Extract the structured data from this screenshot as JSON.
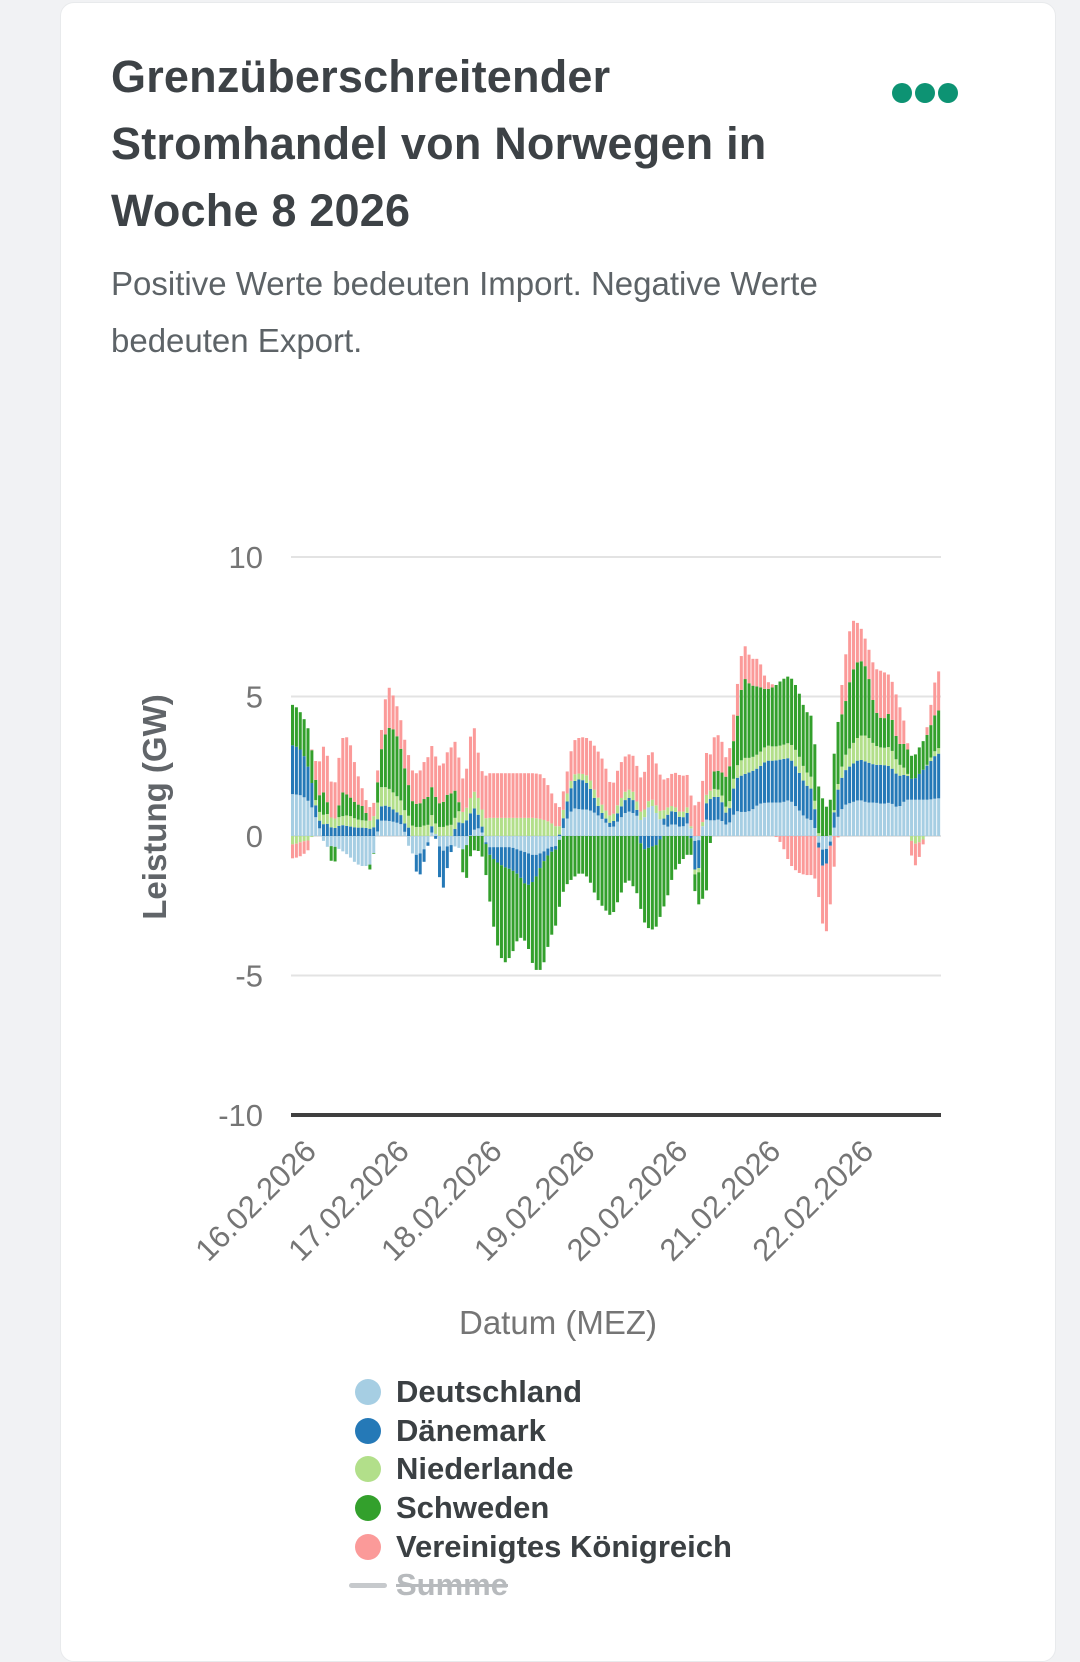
{
  "page": {
    "background": "#f1f2f4"
  },
  "card": {
    "title": "Grenzüberschreitender Stromhandel von Norwegen in Woche 8 2026",
    "subtitle": "Positive Werte bedeuten Import. Negative Werte bedeuten Export.",
    "menu_icon": "ellipsis-horizontal-icon",
    "menu_color": "#0d9373"
  },
  "chart_data": {
    "type": "bar",
    "stacked": true,
    "title": "Grenzüberschreitender Stromhandel von Norwegen in Woche 8 2026",
    "xlabel": "Datum (MEZ)",
    "ylabel": "Leistung (GW)",
    "ylim": [
      -10,
      10
    ],
    "yticks": [
      10,
      5,
      0,
      -5,
      -10
    ],
    "x_tick_labels": [
      "16.02.2026",
      "17.02.2026",
      "18.02.2026",
      "19.02.2026",
      "20.02.2026",
      "21.02.2026",
      "22.02.2026"
    ],
    "x_range_days": 7,
    "hours_per_value": 2,
    "grid": true,
    "legend_position": "bottom",
    "axis_color": "#3f3f3f",
    "grid_color": "#e3e3e3",
    "tick_label_color": "#757575",
    "series": [
      {
        "name": "Deutschland",
        "color": "#a6cee3",
        "values": [
          1.5,
          1.45,
          1.2,
          0.5,
          -0.4,
          -0.35,
          -0.5,
          -0.7,
          -1.0,
          -1.1,
          -1.0,
          0.55,
          0.55,
          0.5,
          0.4,
          -0.6,
          -0.7,
          -0.4,
          0.3,
          -0.6,
          -0.3,
          -0.4,
          -0.5,
          0.2,
          0.3,
          -0.4,
          -0.4,
          -0.4,
          -0.4,
          -0.5,
          -0.6,
          -0.7,
          -0.6,
          -0.4,
          -0.35,
          0.5,
          1.0,
          0.95,
          0.95,
          0.8,
          0.55,
          0.25,
          0.6,
          0.9,
          0.8,
          0.5,
          1.2,
          0.7,
          0.3,
          0.45,
          0.3,
          0.5,
          -0.4,
          0.6,
          0.55,
          0.6,
          0.35,
          0.9,
          0.85,
          0.9,
          1.15,
          1.2,
          1.2,
          1.2,
          1.3,
          1.0,
          0.65,
          0.55,
          -0.5,
          -0.45,
          0.55,
          1.1,
          1.2,
          1.3,
          1.2,
          1.2,
          1.15,
          1.2,
          1.0,
          1.3,
          1.3,
          1.3,
          1.3,
          1.35
        ]
      },
      {
        "name": "Dänemark",
        "color": "#2579b7",
        "values": [
          1.75,
          1.6,
          1.1,
          0.2,
          0.5,
          0.25,
          0.4,
          0.35,
          0.3,
          0.3,
          0.25,
          0.5,
          0.55,
          0.4,
          0.3,
          0.3,
          -0.9,
          -0.3,
          0.4,
          -1.6,
          -0.5,
          0.5,
          0.45,
          0.9,
          0.35,
          -0.2,
          -0.5,
          -0.7,
          -0.8,
          -0.9,
          -1.2,
          -0.9,
          -0.4,
          -0.2,
          -0.1,
          0.5,
          0.95,
          1.1,
          0.9,
          0.4,
          0.15,
          0.15,
          0.35,
          0.5,
          0.45,
          -0.5,
          -0.4,
          -0.3,
          0.4,
          0.5,
          0.3,
          0.4,
          -1.5,
          0.5,
          0.85,
          0.8,
          0.3,
          1.15,
          1.35,
          1.4,
          1.3,
          1.5,
          1.5,
          1.55,
          1.5,
          1.4,
          1.2,
          1.1,
          -0.6,
          -0.5,
          0.9,
          1.2,
          1.35,
          1.45,
          1.45,
          1.35,
          1.4,
          1.3,
          1.15,
          0.9,
          0.7,
          1.0,
          1.3,
          1.6
        ]
      },
      {
        "name": "Niederlande",
        "color": "#b2df8a",
        "values": [
          -0.3,
          -0.2,
          -0.15,
          0.3,
          0.35,
          0.35,
          0.3,
          0.4,
          0.3,
          0.25,
          0.3,
          0.7,
          0.65,
          0.6,
          0.5,
          0.4,
          0.3,
          0.4,
          0.4,
          0.3,
          0.4,
          0.4,
          0.4,
          0.6,
          0.6,
          0.65,
          0.65,
          0.65,
          0.65,
          0.65,
          0.65,
          0.65,
          0.6,
          0.5,
          0.3,
          0.3,
          0.25,
          0.2,
          0.3,
          0.3,
          0.3,
          0.25,
          0.3,
          0.3,
          0.3,
          0.3,
          0.2,
          0.3,
          0.3,
          0.15,
          0.2,
          0.2,
          -0.3,
          0.3,
          0.3,
          0.25,
          0.2,
          0.4,
          0.6,
          0.5,
          0.5,
          0.55,
          0.5,
          0.5,
          0.55,
          0.6,
          0.5,
          0.4,
          0.0,
          0.0,
          0.1,
          0.5,
          0.7,
          0.85,
          0.95,
          0.7,
          0.6,
          0.7,
          0.45,
          0.2,
          -0.3,
          -0.2,
          0.1,
          0.2
        ]
      },
      {
        "name": "Schweden",
        "color": "#33a02c",
        "values": [
          1.45,
          1.3,
          1.4,
          0.5,
          0.9,
          -1.0,
          0.9,
          0.7,
          0.55,
          0.5,
          -0.4,
          1.1,
          2.15,
          2.3,
          1.7,
          0.9,
          0.8,
          1.0,
          1.0,
          0.8,
          1.2,
          0.9,
          -1.4,
          -0.5,
          -0.55,
          -1.3,
          -2.8,
          -3.5,
          -3.1,
          -2.2,
          -2.0,
          -3.2,
          -3.8,
          -3.1,
          -2.6,
          -1.8,
          -1.5,
          -1.3,
          -1.5,
          -2.2,
          -2.6,
          -2.9,
          -2.2,
          -1.5,
          -1.9,
          -2.5,
          -3.0,
          -2.9,
          -2.4,
          -1.3,
          -0.9,
          -0.6,
          -0.6,
          -2.8,
          0.6,
          0.7,
          1.2,
          1.4,
          2.9,
          2.6,
          2.4,
          2.0,
          2.15,
          2.35,
          2.4,
          2.3,
          2.15,
          2.2,
          1.5,
          0.9,
          2.4,
          1.7,
          2.6,
          2.75,
          2.4,
          1.25,
          1.0,
          1.25,
          0.7,
          0.9,
          0.8,
          1.0,
          1.1,
          1.35
        ]
      },
      {
        "name": "Vereinigtes Königreich",
        "color": "#fb9a99",
        "values": [
          -0.5,
          -0.5,
          -0.3,
          1.0,
          1.85,
          1.1,
          1.9,
          2.1,
          1.2,
          0.45,
          0.5,
          0.4,
          1.55,
          1.1,
          1.0,
          1.1,
          1.1,
          1.4,
          1.5,
          1.3,
          1.6,
          1.8,
          1.0,
          2.6,
          1.3,
          1.6,
          1.6,
          1.6,
          1.6,
          1.6,
          1.6,
          1.6,
          1.6,
          1.2,
          0.7,
          0.65,
          1.2,
          1.3,
          1.35,
          1.65,
          1.65,
          1.05,
          1.3,
          1.25,
          1.3,
          1.2,
          1.8,
          1.4,
          1.0,
          1.2,
          1.35,
          1.1,
          1.1,
          1.6,
          1.2,
          1.3,
          0.5,
          1.1,
          1.25,
          0.95,
          1.0,
          0.3,
          0.05,
          -0.3,
          -1.0,
          -1.3,
          -1.4,
          -1.4,
          -1.9,
          -2.6,
          -0.6,
          1.6,
          1.9,
          1.25,
          0.9,
          1.5,
          1.75,
          1.3,
          1.55,
          0.6,
          -0.9,
          -0.4,
          0.5,
          1.4
        ]
      },
      {
        "name": "Summe",
        "color": "#c6c9cc",
        "swatch": "line",
        "hidden": true,
        "values": null
      }
    ]
  }
}
